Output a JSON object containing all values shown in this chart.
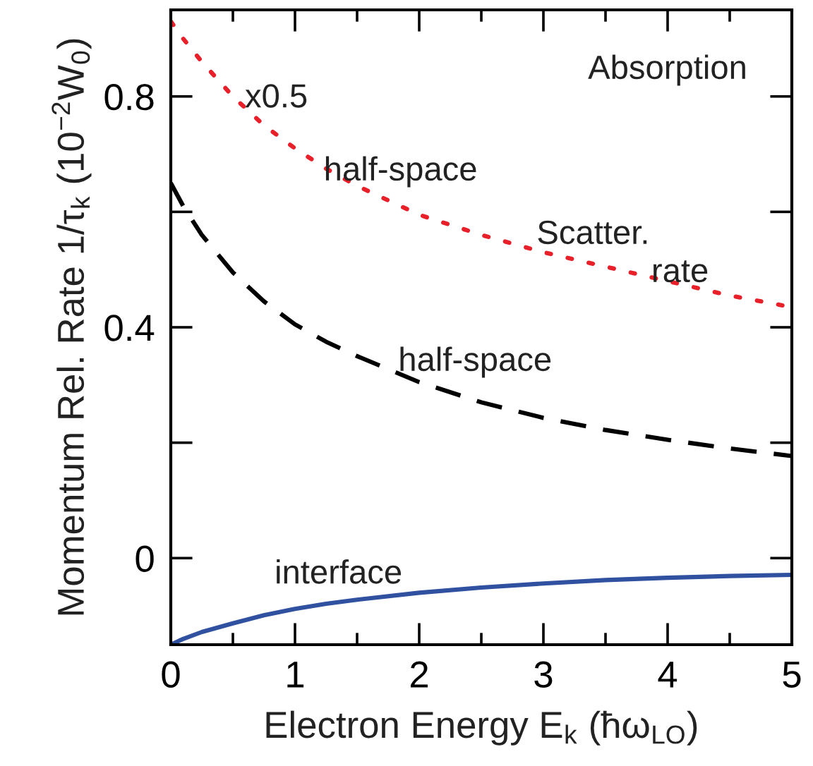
{
  "chart_data": {
    "type": "line",
    "xlabel": "Electron Energy E$_{k}$ (ħω$_{LO}$)",
    "ylabel": "Momentum Rel. Rate 1/τ$_{k}$ (10$^{−2}$W$_{0}$)",
    "x": [
      0,
      0.1,
      0.25,
      0.5,
      0.75,
      1,
      1.25,
      1.5,
      2,
      2.5,
      3,
      3.5,
      4,
      4.5,
      5
    ],
    "series": [
      {
        "color": "#e8202a",
        "line_style": "dotted",
        "values": [
          0.93,
          0.9,
          0.86,
          0.8,
          0.75,
          0.71,
          0.675,
          0.645,
          0.595,
          0.56,
          0.53,
          0.505,
          0.48,
          0.455,
          0.435
        ]
      },
      {
        "color": "#000000",
        "line_style": "dashed",
        "values": [
          0.65,
          0.61,
          0.56,
          0.495,
          0.445,
          0.405,
          0.375,
          0.35,
          0.305,
          0.27,
          0.243,
          0.222,
          0.205,
          0.19,
          0.177
        ]
      },
      {
        "color": "#3050a0",
        "line_style": "solid",
        "values": [
          -0.15,
          -0.14,
          -0.128,
          -0.113,
          -0.099,
          -0.088,
          -0.079,
          -0.072,
          -0.06,
          -0.051,
          -0.044,
          -0.038,
          -0.034,
          -0.031,
          -0.029
        ]
      }
    ],
    "xlim": [
      0,
      5
    ],
    "ylim": [
      -0.15,
      0.95
    ],
    "xticks": [
      0,
      {
        "value": 0.5,
        "label": null
      },
      1,
      {
        "value": 1.5,
        "label": null
      },
      2,
      {
        "value": 2.5,
        "label": null
      },
      3,
      {
        "value": 3.5,
        "label": null
      },
      4,
      {
        "value": 4.5,
        "label": null
      },
      5
    ],
    "yticks": [
      0,
      {
        "value": 0.2,
        "label": null
      },
      0.4,
      {
        "value": 0.6,
        "label": null
      },
      0.8
    ],
    "grid": false,
    "legend": false,
    "annotations": [
      "Absorption",
      "x0.5",
      "half-space",
      "Scatter.",
      "rate",
      "half-space",
      "interface"
    ]
  }
}
